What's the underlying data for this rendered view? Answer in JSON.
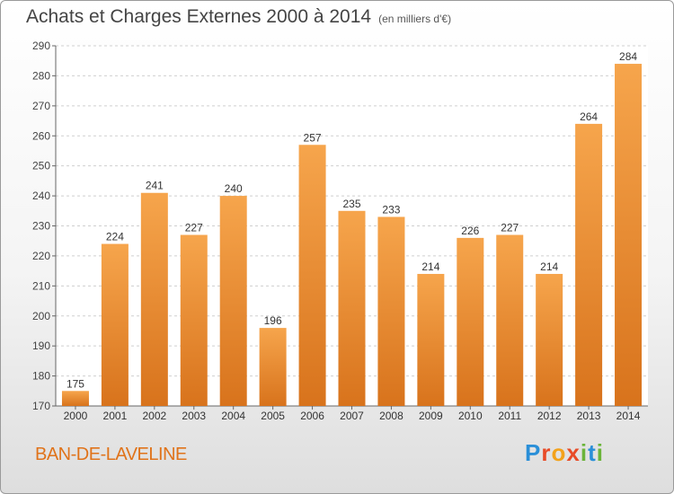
{
  "chart_data": {
    "type": "bar",
    "title": "Achats et Charges Externes 2000 à 2014",
    "unit": "(en milliers d'€)",
    "categories": [
      "2000",
      "2001",
      "2002",
      "2003",
      "2004",
      "2005",
      "2006",
      "2007",
      "2008",
      "2009",
      "2010",
      "2011",
      "2012",
      "2013",
      "2014"
    ],
    "values": [
      175,
      224,
      241,
      227,
      240,
      196,
      257,
      235,
      233,
      214,
      226,
      227,
      214,
      264,
      284
    ],
    "ylim": [
      170,
      290
    ],
    "yticks": [
      170,
      180,
      190,
      200,
      210,
      220,
      230,
      240,
      250,
      260,
      270,
      280,
      290
    ],
    "grid": true,
    "bar_color": "#f0983c"
  },
  "footer": {
    "place": "BAN-DE-LAVELINE",
    "logo": "Proxiti"
  }
}
